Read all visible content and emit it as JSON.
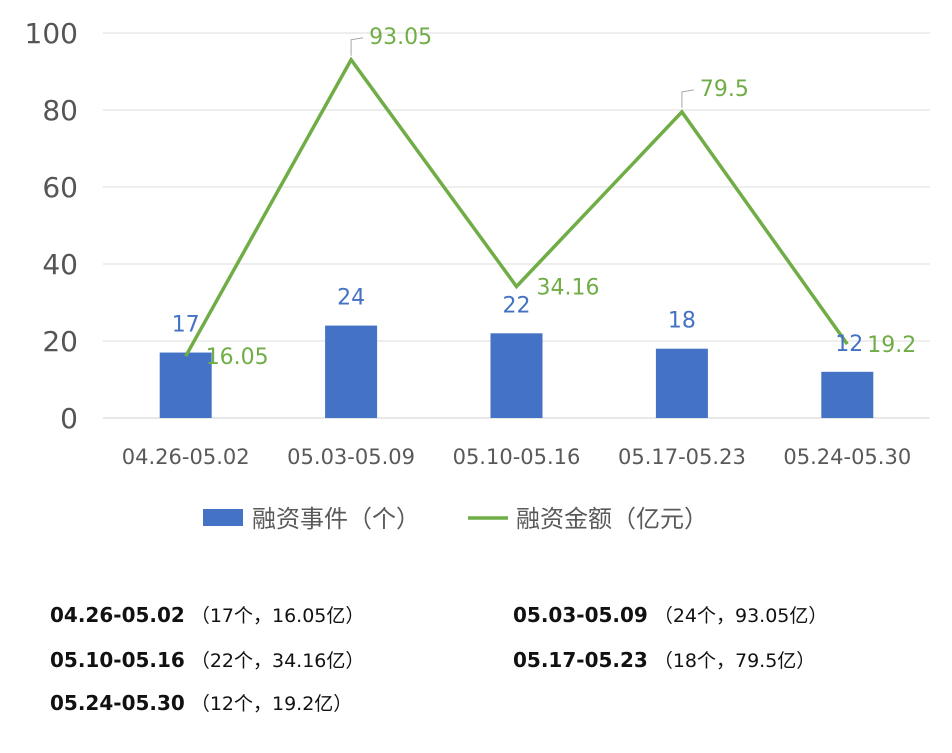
{
  "chart_data": {
    "type": "bar+line",
    "categories": [
      "04.26-05.02",
      "05.03-05.09",
      "05.10-05.16",
      "05.17-05.23",
      "05.24-05.30"
    ],
    "series": [
      {
        "name": "融资事件（个）",
        "type": "bar",
        "color": "#4472C4",
        "values": [
          17,
          24,
          22,
          18,
          12
        ]
      },
      {
        "name": "融资金额（亿元）",
        "type": "line",
        "color": "#70AD47",
        "values": [
          16.05,
          93.05,
          34.16,
          79.5,
          19.2
        ]
      }
    ],
    "y_ticks": [
      "0",
      "20",
      "40",
      "60",
      "80",
      "100"
    ],
    "ylim": [
      0,
      100
    ],
    "grid": true,
    "legend_position": "bottom"
  },
  "summary": [
    {
      "range": "04.26-05.02",
      "detail": "（17个，16.05亿）"
    },
    {
      "range": "05.03-05.09",
      "detail": "（24个，93.05亿）"
    },
    {
      "range": "05.10-05.16",
      "detail": "（22个，34.16亿）"
    },
    {
      "range": "05.17-05.23",
      "detail": "（18个，79.5亿）"
    },
    {
      "range": "05.24-05.30",
      "detail": "（12个，19.2亿）"
    }
  ]
}
